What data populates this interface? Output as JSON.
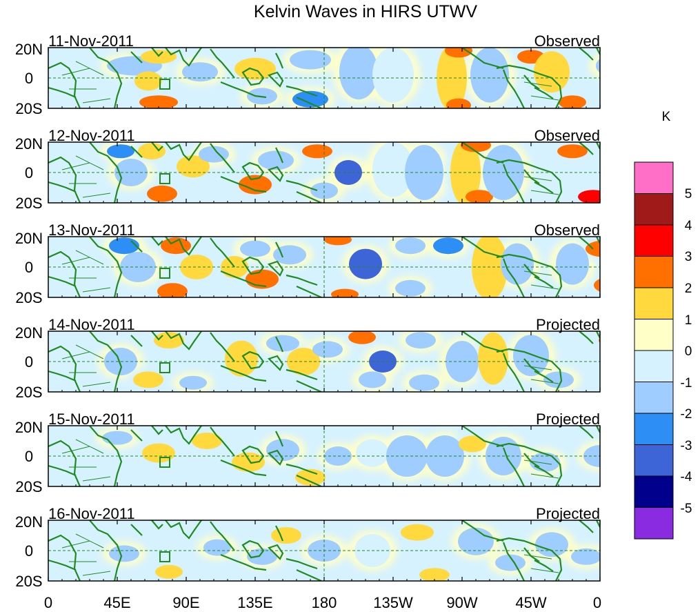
{
  "title": "Kelvin Waves in HIRS UTWV",
  "unit_label": "K",
  "lat_labels": [
    "20N",
    "0",
    "20S"
  ],
  "lon_labels": [
    "0",
    "45E",
    "90E",
    "135E",
    "180",
    "135W",
    "90W",
    "45W",
    "0"
  ],
  "panels": [
    {
      "date": "11-Nov-2011",
      "status": "Observed"
    },
    {
      "date": "12-Nov-2011",
      "status": "Observed"
    },
    {
      "date": "13-Nov-2011",
      "status": "Observed"
    },
    {
      "date": "14-Nov-2011",
      "status": "Projected"
    },
    {
      "date": "15-Nov-2011",
      "status": "Projected"
    },
    {
      "date": "16-Nov-2011",
      "status": "Projected"
    }
  ],
  "colorbar": {
    "labels": [
      "5",
      "4",
      "3",
      "2",
      "1",
      "0",
      "-1",
      "-2",
      "-3",
      "-4",
      "-5"
    ],
    "colors": [
      "#ff6ec7",
      "#a01a1a",
      "#ff0000",
      "#ff7000",
      "#ffd93d",
      "#ffffc8",
      "#d6f2ff",
      "#9fcdff",
      "#2d8ef6",
      "#3e65d8",
      "#00008c",
      "#8a2be2"
    ]
  },
  "land_color": "#1e8c1e"
}
